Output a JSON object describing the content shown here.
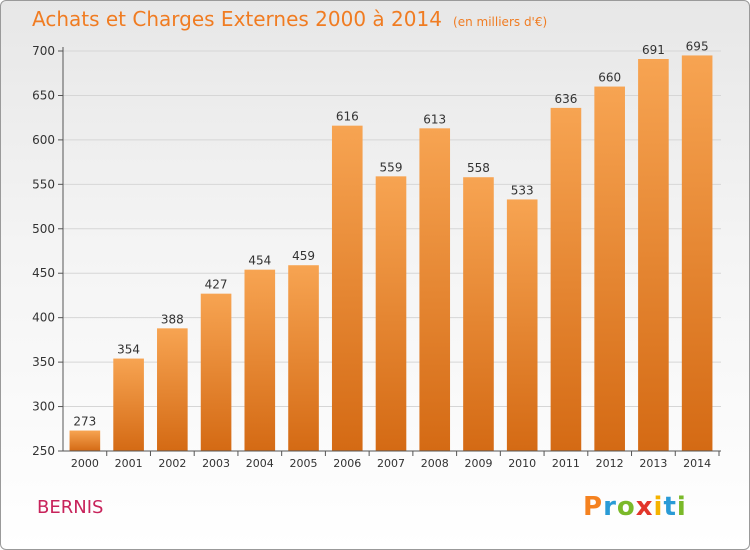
{
  "title": {
    "main": "Achats et Charges Externes 2000 à 2014",
    "unit": "(en milliers d'€)"
  },
  "commune": "BERNIS",
  "brand": [
    "P",
    "r",
    "o",
    "x",
    "i",
    "t",
    "i"
  ],
  "chart_data": {
    "type": "bar",
    "title": "Achats et Charges Externes 2000 à 2014",
    "subtitle": "(en milliers d'€)",
    "categories": [
      "2000",
      "2001",
      "2002",
      "2003",
      "2004",
      "2005",
      "2006",
      "2007",
      "2008",
      "2009",
      "2010",
      "2011",
      "2012",
      "2013",
      "2014"
    ],
    "values": [
      273,
      354,
      388,
      427,
      454,
      459,
      616,
      559,
      613,
      558,
      533,
      636,
      660,
      691,
      695
    ],
    "ylim": [
      250,
      700
    ],
    "yticks": [
      250,
      300,
      350,
      400,
      450,
      500,
      550,
      600,
      650,
      700
    ],
    "grid": true,
    "bar_color": "#f0862a"
  }
}
